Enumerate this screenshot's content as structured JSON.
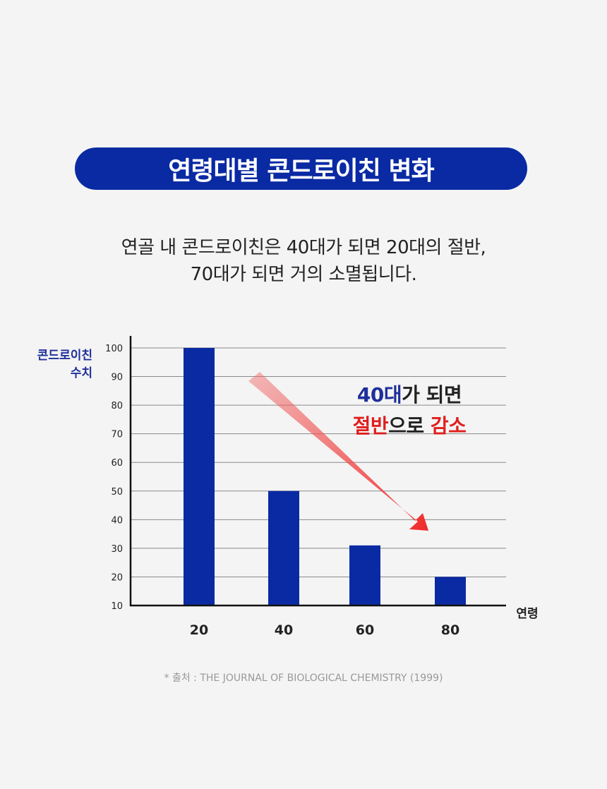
{
  "header": {
    "title": "연령대별 콘드로이친 변화"
  },
  "description": {
    "line1": "연골 내 콘드로이친은 40대가 되면 20대의 절반,",
    "line2": "70대가 되면 거의 소멸됩니다."
  },
  "annotation": {
    "line1_part1": "40대",
    "line1_part2": "가 되면",
    "line2_part1": "절반",
    "line2_part2": "으로 ",
    "line2_part3": "감소"
  },
  "source": "* 출처 : THE JOURNAL OF BIOLOGICAL CHEMISTRY (1999)",
  "colors": {
    "bar": "#0a2aa3",
    "accent_blue": "#1e2f9a",
    "accent_red": "#e01e1e",
    "arrow": "#f03030"
  },
  "chart_data": {
    "type": "bar",
    "ylabel_lines": [
      "콘드로이친",
      "수치"
    ],
    "xlabel": "연령",
    "categories": [
      "20",
      "40",
      "60",
      "80"
    ],
    "values": [
      100,
      50,
      31,
      20
    ],
    "ylim": [
      10,
      100
    ],
    "yticks": [
      "100",
      "90",
      "80",
      "70",
      "60",
      "50",
      "40",
      "30",
      "20",
      "10"
    ],
    "grid": true
  }
}
